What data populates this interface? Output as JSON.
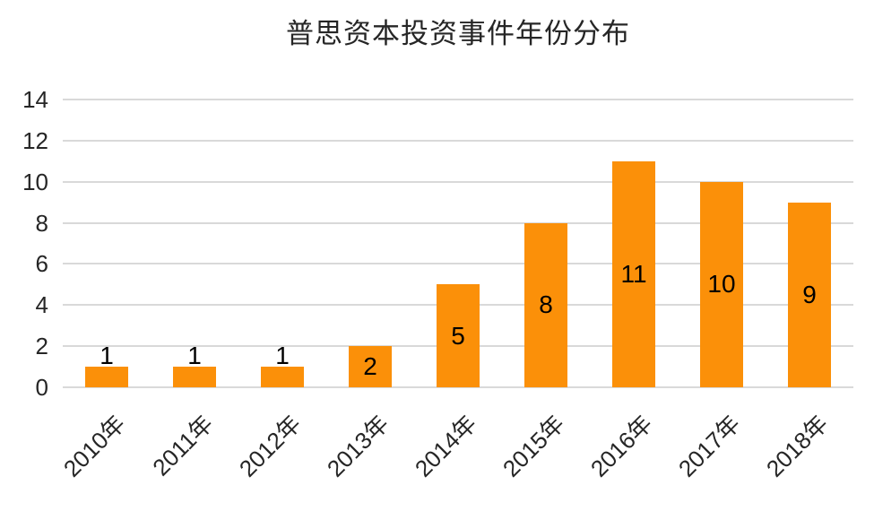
{
  "chart_data": {
    "type": "bar",
    "title": "普思资本投资事件年份分布",
    "categories": [
      "2010年",
      "2011年",
      "2012年",
      "2013年",
      "2014年",
      "2015年",
      "2016年",
      "2017年",
      "2018年"
    ],
    "values": [
      1,
      1,
      1,
      2,
      5,
      8,
      11,
      10,
      9
    ],
    "xlabel": "",
    "ylabel": "",
    "ylim": [
      0,
      14
    ],
    "yticks": [
      0,
      2,
      4,
      6,
      8,
      10,
      12,
      14
    ],
    "grid": true,
    "legend": false,
    "data_labels": true,
    "x_tick_rotation_deg": 45,
    "colors": {
      "bar": "#FB9009",
      "gridline": "#D9D9D9",
      "axis_text": "#262626",
      "data_label": "#000000",
      "background": "#FFFFFF"
    }
  }
}
